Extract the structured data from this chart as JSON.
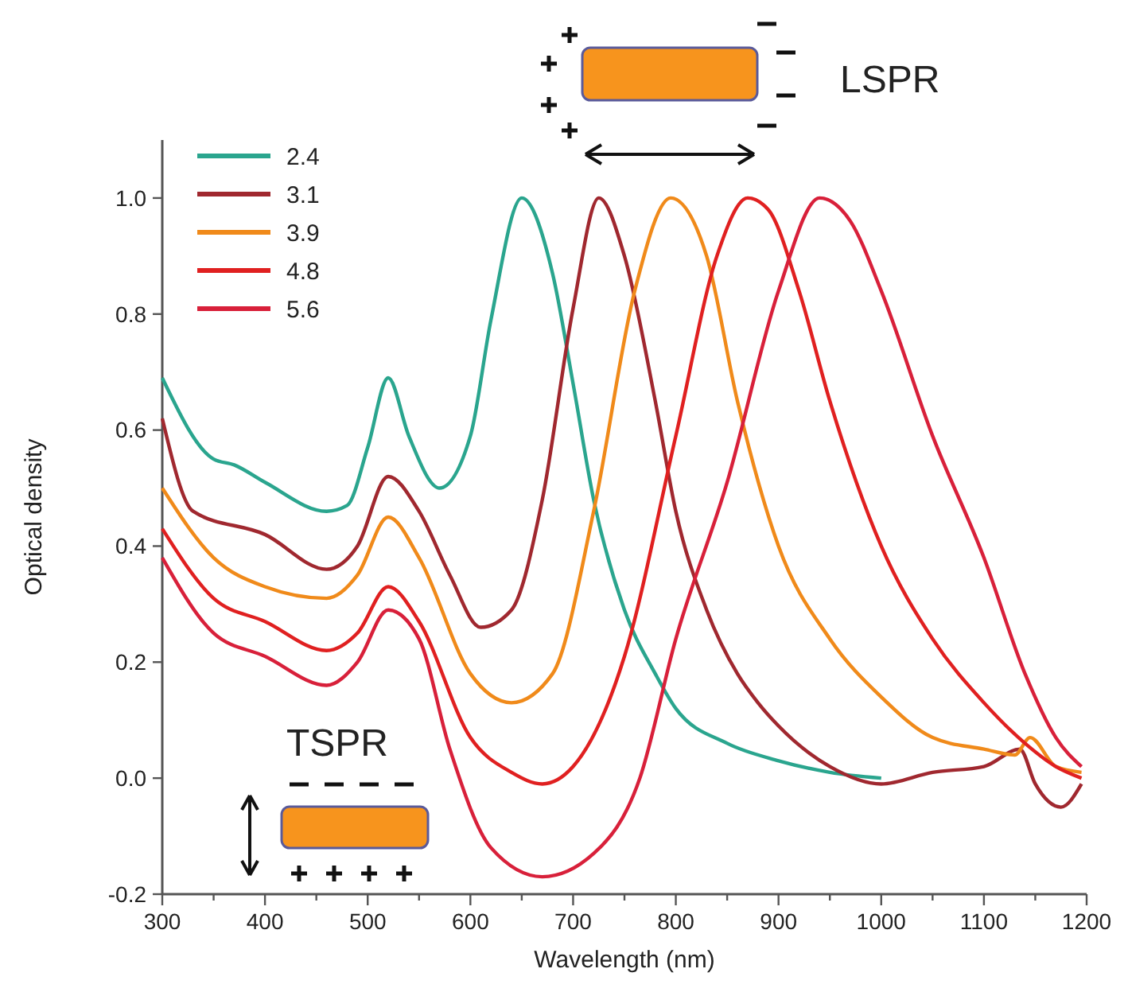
{
  "chart_data": {
    "type": "line",
    "xlabel": "Wavelength (nm)",
    "ylabel": "Optical density",
    "xlim": [
      300,
      1200
    ],
    "ylim": [
      -0.2,
      1.1
    ],
    "xticks": [
      300,
      {
        "value": 350,
        "label": null
      },
      400,
      {
        "value": 450,
        "label": null
      },
      500,
      {
        "value": 550,
        "label": null
      },
      600,
      {
        "value": 650,
        "label": null
      },
      700,
      {
        "value": 750,
        "label": null
      },
      800,
      {
        "value": 850,
        "label": null
      },
      900,
      {
        "value": 950,
        "label": null
      },
      1000,
      {
        "value": 1050,
        "label": null
      },
      1100,
      {
        "value": 1150,
        "label": null
      },
      1200
    ],
    "yticks": [
      {
        "value": -0.2,
        "label": "-0.2"
      },
      {
        "value": 0,
        "label": "0.0"
      },
      {
        "value": 0.2,
        "label": "0.2"
      },
      {
        "value": 0.4,
        "label": "0.4"
      },
      {
        "value": 0.6,
        "label": "0.6"
      },
      {
        "value": 0.8,
        "label": "0.8"
      },
      {
        "value": 1,
        "label": "1.0"
      }
    ],
    "legend": "top left",
    "grid": false,
    "marker": "none",
    "line_style": "solid",
    "annotations": [
      "LSPR",
      "TSPR"
    ],
    "series": [
      {
        "name": "2.4",
        "color": "#2aa58e",
        "x": [
          300,
          350,
          370,
          400,
          460,
          480,
          500,
          520,
          540,
          570,
          600,
          620,
          650,
          680,
          700,
          720,
          750,
          780,
          800,
          850,
          900,
          950,
          1000
        ],
        "values": [
          0.69,
          0.55,
          0.54,
          0.51,
          0.46,
          0.47,
          0.57,
          0.69,
          0.59,
          0.5,
          0.59,
          0.79,
          1.0,
          0.87,
          0.68,
          0.48,
          0.29,
          0.18,
          0.12,
          0.06,
          0.03,
          0.01,
          0.0
        ]
      },
      {
        "name": "3.1",
        "color": "#a0282f",
        "x": [
          300,
          330,
          400,
          460,
          490,
          520,
          550,
          580,
          610,
          640,
          670,
          700,
          725,
          750,
          780,
          800,
          830,
          860,
          880,
          900,
          950,
          1000,
          1050,
          1100,
          1135,
          1150,
          1175,
          1195
        ],
        "values": [
          0.62,
          0.46,
          0.42,
          0.36,
          0.4,
          0.52,
          0.46,
          0.35,
          0.26,
          0.29,
          0.48,
          0.81,
          1.0,
          0.9,
          0.65,
          0.46,
          0.29,
          0.18,
          0.13,
          0.09,
          0.02,
          -0.01,
          0.01,
          0.02,
          0.05,
          -0.01,
          -0.05,
          -0.01
        ]
      },
      {
        "name": "3.9",
        "color": "#f08a1a",
        "x": [
          300,
          350,
          400,
          460,
          490,
          520,
          550,
          600,
          640,
          680,
          720,
          760,
          795,
          830,
          860,
          900,
          950,
          1000,
          1050,
          1100,
          1130,
          1145,
          1170,
          1195
        ],
        "values": [
          0.5,
          0.38,
          0.33,
          0.31,
          0.35,
          0.45,
          0.38,
          0.18,
          0.13,
          0.18,
          0.46,
          0.84,
          1.0,
          0.9,
          0.65,
          0.4,
          0.24,
          0.14,
          0.07,
          0.05,
          0.04,
          0.07,
          0.02,
          0.01
        ]
      },
      {
        "name": "4.8",
        "color": "#e02020",
        "x": [
          300,
          350,
          400,
          460,
          490,
          520,
          550,
          600,
          640,
          670,
          700,
          750,
          800,
          840,
          870,
          890,
          920,
          950,
          1000,
          1050,
          1100,
          1140,
          1170,
          1195
        ],
        "values": [
          0.43,
          0.31,
          0.27,
          0.22,
          0.25,
          0.33,
          0.27,
          0.07,
          0.01,
          -0.01,
          0.02,
          0.21,
          0.59,
          0.9,
          1.0,
          0.98,
          0.84,
          0.65,
          0.4,
          0.24,
          0.13,
          0.06,
          0.02,
          0.0
        ]
      },
      {
        "name": "5.6",
        "color": "#d8203a",
        "x": [
          300,
          350,
          400,
          460,
          490,
          520,
          550,
          580,
          620,
          670,
          720,
          765,
          800,
          850,
          900,
          940,
          970,
          1000,
          1050,
          1100,
          1140,
          1170,
          1195
        ],
        "values": [
          0.38,
          0.25,
          0.21,
          0.16,
          0.2,
          0.29,
          0.24,
          0.05,
          -0.12,
          -0.17,
          -0.13,
          0.0,
          0.24,
          0.51,
          0.84,
          1.0,
          0.96,
          0.84,
          0.59,
          0.38,
          0.18,
          0.07,
          0.02
        ]
      }
    ]
  }
}
